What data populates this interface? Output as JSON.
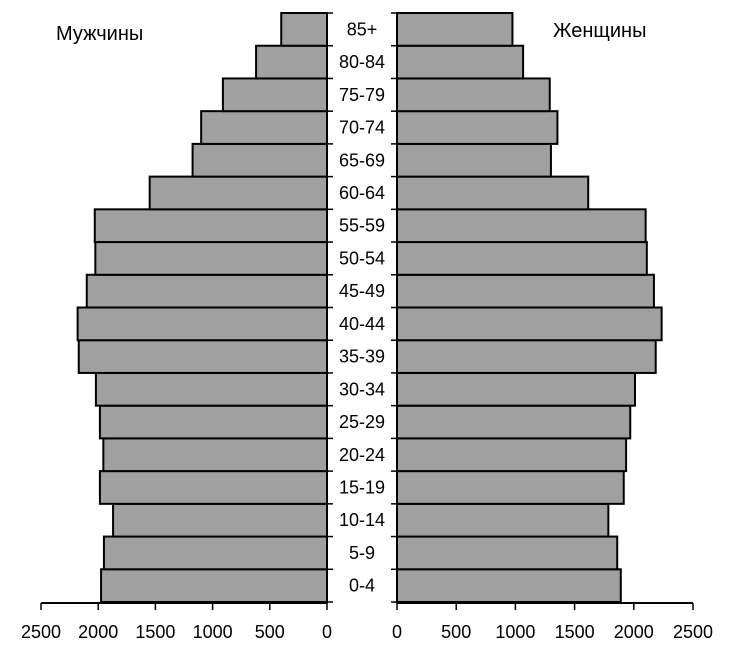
{
  "chart_data": {
    "type": "bar",
    "orientation": "horizontal",
    "layout": "population-pyramid",
    "categories": [
      "0-4",
      "5-9",
      "10-14",
      "15-19",
      "20-24",
      "25-29",
      "30-34",
      "35-39",
      "40-44",
      "45-49",
      "50-54",
      "55-59",
      "60-64",
      "65-69",
      "70-74",
      "75-79",
      "80-84",
      "85+"
    ],
    "series": [
      {
        "name": "Мужчины",
        "side": "left",
        "values": [
          1975,
          1950,
          1870,
          1985,
          1955,
          1985,
          2020,
          2170,
          2180,
          2100,
          2025,
          2030,
          1550,
          1175,
          1100,
          910,
          620,
          400
        ]
      },
      {
        "name": "Женщины",
        "side": "right",
        "values": [
          1890,
          1860,
          1785,
          1915,
          1935,
          1970,
          2010,
          2185,
          2235,
          2170,
          2110,
          2100,
          1615,
          1300,
          1355,
          1290,
          1065,
          975
        ]
      }
    ],
    "left_axis": {
      "ticks": [
        "2500",
        "2000",
        "1500",
        "1000",
        "500",
        "0"
      ],
      "range": [
        2500,
        0
      ]
    },
    "right_axis": {
      "ticks": [
        "0",
        "500",
        "1000",
        "1500",
        "2000",
        "2500"
      ],
      "range": [
        0,
        2500
      ]
    },
    "bar_color": "#a0a0a0",
    "outline_color": "#000000",
    "grid": false,
    "legend": "none"
  }
}
